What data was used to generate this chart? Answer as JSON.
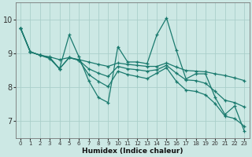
{
  "xlabel": "Humidex (Indice chaleur)",
  "xlim": [
    -0.5,
    23.5
  ],
  "ylim": [
    6.5,
    10.5
  ],
  "xticks": [
    0,
    1,
    2,
    3,
    4,
    5,
    6,
    7,
    8,
    9,
    10,
    11,
    12,
    13,
    14,
    15,
    16,
    17,
    18,
    19,
    20,
    21,
    22,
    23
  ],
  "yticks": [
    7,
    8,
    9,
    10
  ],
  "bg_color": "#cce8e4",
  "plot_bg_color": "#cce8e4",
  "line_color": "#1a7a6e",
  "grid_color": "#aacfca",
  "lines": [
    {
      "x": [
        0,
        1,
        2,
        3,
        4,
        5,
        6,
        7,
        8,
        9,
        10,
        11,
        12,
        13,
        14,
        15,
        16,
        17,
        18,
        19,
        20,
        21,
        22,
        23
      ],
      "y": [
        9.75,
        9.05,
        8.95,
        8.85,
        8.55,
        9.55,
        8.9,
        8.2,
        7.7,
        7.55,
        9.2,
        8.75,
        8.75,
        8.7,
        9.55,
        10.05,
        9.1,
        8.25,
        8.4,
        8.4,
        7.7,
        7.2,
        7.45,
        6.7
      ]
    },
    {
      "x": [
        0,
        1,
        2,
        3,
        4,
        5,
        6,
        7,
        8,
        9,
        10,
        11,
        12,
        13,
        14,
        15,
        16,
        17,
        18,
        19,
        20,
        21,
        22,
        23
      ],
      "y": [
        9.75,
        9.05,
        8.95,
        8.9,
        8.82,
        8.88,
        8.82,
        8.75,
        8.68,
        8.62,
        8.72,
        8.68,
        8.65,
        8.62,
        8.62,
        8.72,
        8.6,
        8.5,
        8.48,
        8.46,
        8.4,
        8.35,
        8.28,
        8.2
      ]
    },
    {
      "x": [
        0,
        1,
        2,
        3,
        4,
        5,
        6,
        7,
        8,
        9,
        10,
        11,
        12,
        13,
        14,
        15,
        16,
        17,
        18,
        19,
        20,
        21,
        22,
        23
      ],
      "y": [
        9.75,
        9.05,
        8.95,
        8.88,
        8.55,
        8.88,
        8.8,
        8.55,
        8.42,
        8.32,
        8.62,
        8.55,
        8.52,
        8.48,
        8.52,
        8.65,
        8.42,
        8.22,
        8.2,
        8.12,
        7.88,
        7.62,
        7.55,
        7.42
      ]
    },
    {
      "x": [
        0,
        1,
        2,
        3,
        4,
        5,
        6,
        7,
        8,
        9,
        10,
        11,
        12,
        13,
        14,
        15,
        16,
        17,
        18,
        19,
        20,
        21,
        22,
        23
      ],
      "y": [
        9.75,
        9.05,
        8.95,
        8.88,
        8.55,
        8.88,
        8.8,
        8.38,
        8.18,
        8.02,
        8.48,
        8.38,
        8.32,
        8.26,
        8.42,
        8.58,
        8.18,
        7.92,
        7.88,
        7.78,
        7.52,
        7.15,
        7.08,
        6.85
      ]
    }
  ]
}
